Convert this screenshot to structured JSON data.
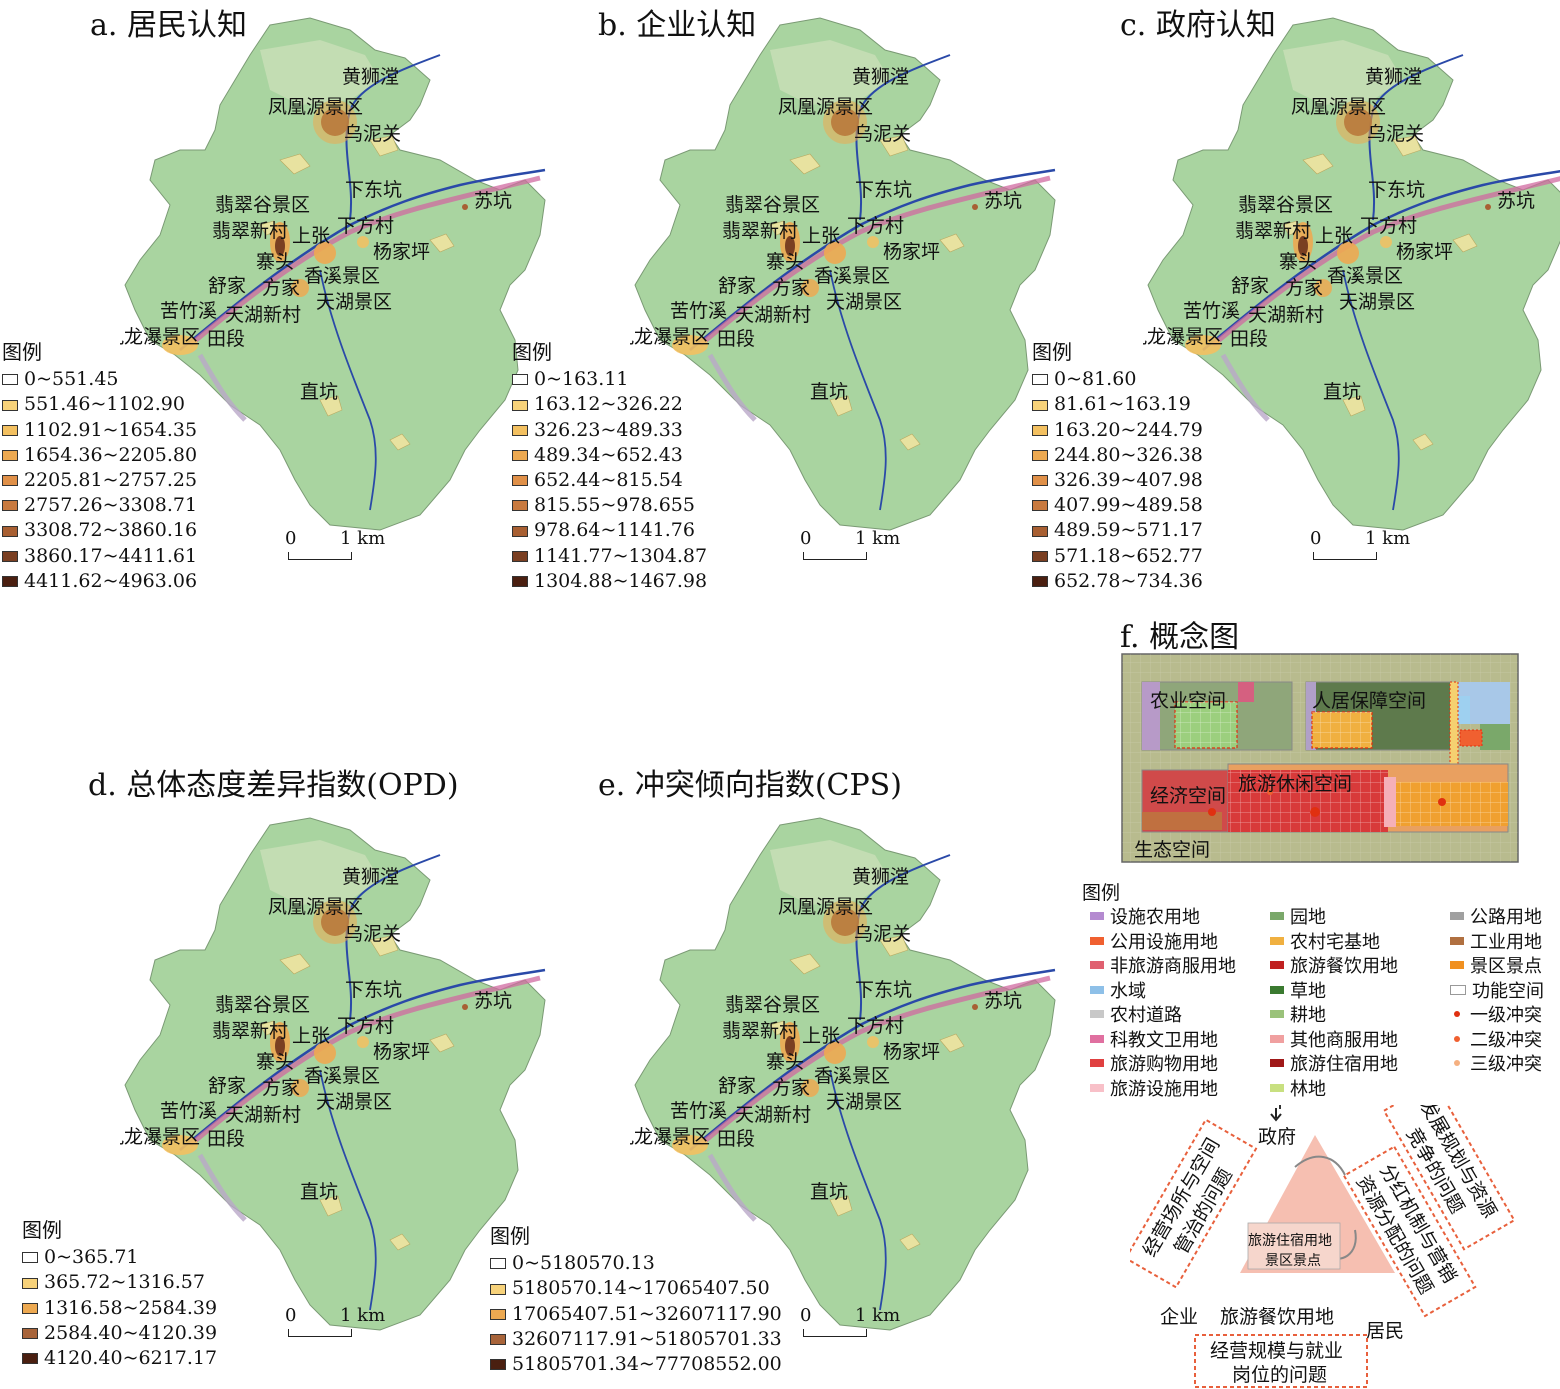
{
  "panels": [
    {
      "title": "a. 居民认知",
      "legend_title": "图例",
      "classes": [
        "0~551.45",
        "551.46~1102.90",
        "1102.91~1654.35",
        "1654.36~2205.80",
        "2205.81~2757.25",
        "2757.26~3308.71",
        "3308.72~3860.16",
        "3860.17~4411.61",
        "4411.62~4963.06"
      ]
    },
    {
      "title": "b. 企业认知",
      "legend_title": "图例",
      "classes": [
        "0~163.11",
        "163.12~326.22",
        "326.23~489.33",
        "489.34~652.43",
        "652.44~815.54",
        "815.55~978.655",
        "978.64~1141.76",
        "1141.77~1304.87",
        "1304.88~1467.98"
      ]
    },
    {
      "title": "c. 政府认知",
      "legend_title": "图例",
      "classes": [
        "0~81.60",
        "81.61~163.19",
        "163.20~244.79",
        "244.80~326.38",
        "326.39~407.98",
        "407.99~489.58",
        "489.59~571.17",
        "571.18~652.77",
        "652.78~734.36"
      ]
    },
    {
      "title": "d. 总体态度差异指数(OPD)",
      "legend_title": "图例",
      "classes": [
        "0~365.71",
        "365.72~1316.57",
        "1316.58~2584.39",
        "2584.40~4120.39",
        "4120.40~6217.17"
      ]
    },
    {
      "title": "e. 冲突倾向指数(CPS)",
      "legend_title": "图例",
      "classes": [
        "0~5180570.13",
        "5180570.14~17065407.50",
        "17065407.51~32607117.90",
        "32607117.91~51805701.33",
        "51805701.34~77708552.00"
      ]
    }
  ],
  "class_colors_9": [
    "#ffffff",
    "#f7d27a",
    "#f3c060",
    "#eda951",
    "#e09048",
    "#c97a3f",
    "#a85f32",
    "#7a3f22",
    "#4a1f10"
  ],
  "class_colors_5": [
    "#ffffff",
    "#f7d27a",
    "#eda951",
    "#a8643a",
    "#4a1f10"
  ],
  "scale": {
    "zero": "0",
    "one": "1 km"
  },
  "place_names": {
    "huangshitan": "黄狮漟",
    "fenghuangyuan": "凤凰源景区",
    "wuniguan": "乌泥关",
    "xiadongkeng": "下东坑",
    "sukeng": "苏坑",
    "feicuigu": "翡翠谷景区",
    "feicuixincun": "翡翠新村",
    "shangzhang": "上张",
    "xiafangcun": "下方村",
    "yangjiaping": "杨家坪",
    "zhaitou": "寨头",
    "xiangxi": "香溪景区",
    "shujia": "舒家",
    "fangjia": "方家",
    "tianhu": "天湖景区",
    "kuzhuxi": "苦竹溪",
    "tianhuxincun": "天湖新村",
    "jiulongpu": "九龙瀑景区",
    "tianduan": "田段",
    "zhikeng": "直坑"
  },
  "concept": {
    "title": "f. 概念图",
    "spaces": {
      "agri": "农业空间",
      "living": "人居保障空间",
      "econ": "经济空间",
      "tourism": "旅游休闲空间",
      "eco": "生态空间"
    },
    "legend_title": "图例",
    "legend": [
      {
        "label": "设施农用地",
        "color": "#b48ad0"
      },
      {
        "label": "园地",
        "color": "#7aa86a"
      },
      {
        "label": "公路用地",
        "color": "#a0a0a0"
      },
      {
        "label": "公用设施用地",
        "color": "#f06030"
      },
      {
        "label": "农村宅基地",
        "color": "#f0b040"
      },
      {
        "label": "工业用地",
        "color": "#b07040"
      },
      {
        "label": "非旅游商服用地",
        "color": "#e06070"
      },
      {
        "label": "旅游餐饮用地",
        "color": "#c02020"
      },
      {
        "label": "景区景点",
        "color": "#f09020"
      },
      {
        "label": "水域",
        "color": "#8ec0e8"
      },
      {
        "label": "草地",
        "color": "#3a7a30"
      },
      {
        "label": "功能空间",
        "color": "#ffffff"
      },
      {
        "label": "农村道路",
        "color": "#c8c8c8"
      },
      {
        "label": "耕地",
        "color": "#9ac27a"
      },
      {
        "label": "一级冲突",
        "color": "#e03010"
      },
      {
        "label": "科教文卫用地",
        "color": "#e070a0"
      },
      {
        "label": "其他商服用地",
        "color": "#f0a0a0"
      },
      {
        "label": "二级冲突",
        "color": "#f06030"
      },
      {
        "label": "旅游购物用地",
        "color": "#e04040"
      },
      {
        "label": "旅游住宿用地",
        "color": "#a01818"
      },
      {
        "label": "三级冲突",
        "color": "#f5b080"
      },
      {
        "label": "旅游设施用地",
        "color": "#f8c0c8"
      },
      {
        "label": "林地",
        "color": "#c8e080"
      }
    ],
    "triangle": {
      "top": "政府",
      "left": "企业",
      "right": "居民",
      "center1": "旅游住宿用地",
      "center2": "景区景点",
      "bottom_inner": "旅游餐饮用地",
      "box_left": [
        "经营场所与空间",
        "管治的问题"
      ],
      "box_right1": [
        "发展规划与资源",
        "竞争的问题"
      ],
      "box_right2": [
        "分红机制与营销",
        "资源分配的问题"
      ],
      "box_bottom": [
        "经营规模与就业",
        "岗位的问题"
      ]
    }
  }
}
